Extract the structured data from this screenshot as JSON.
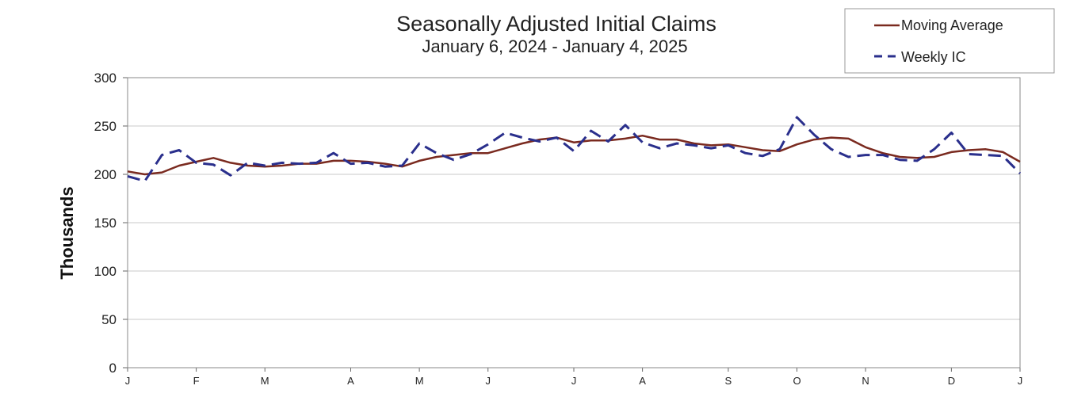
{
  "chart_data": {
    "type": "line",
    "title": "Seasonally Adjusted Initial Claims",
    "subtitle": "January 6, 2024 - January 4, 2025",
    "ylabel": "Thousands",
    "xlabel": "",
    "ylim": [
      0,
      300
    ],
    "yticks": [
      0,
      50,
      100,
      150,
      200,
      250,
      300
    ],
    "xlim": [
      "2024-01-06",
      "2025-01-04"
    ],
    "xticks": [
      {
        "label": "J",
        "date": "2024-01-06"
      },
      {
        "label": "F",
        "date": "2024-02-03"
      },
      {
        "label": "M",
        "date": "2024-03-02"
      },
      {
        "label": "A",
        "date": "2024-04-06"
      },
      {
        "label": "M",
        "date": "2024-05-04"
      },
      {
        "label": "J",
        "date": "2024-06-01"
      },
      {
        "label": "J",
        "date": "2024-07-06"
      },
      {
        "label": "A",
        "date": "2024-08-03"
      },
      {
        "label": "S",
        "date": "2024-09-07"
      },
      {
        "label": "O",
        "date": "2024-10-05"
      },
      {
        "label": "N",
        "date": "2024-11-02"
      },
      {
        "label": "D",
        "date": "2024-12-07"
      },
      {
        "label": "J",
        "date": "2025-01-04"
      }
    ],
    "grid": true,
    "legend": "top-right",
    "x": [
      "2024-01-06",
      "2024-01-13",
      "2024-01-20",
      "2024-01-27",
      "2024-02-03",
      "2024-02-10",
      "2024-02-17",
      "2024-02-24",
      "2024-03-02",
      "2024-03-09",
      "2024-03-16",
      "2024-03-23",
      "2024-03-30",
      "2024-04-06",
      "2024-04-13",
      "2024-04-20",
      "2024-04-27",
      "2024-05-04",
      "2024-05-11",
      "2024-05-18",
      "2024-05-25",
      "2024-06-01",
      "2024-06-08",
      "2024-06-15",
      "2024-06-22",
      "2024-06-29",
      "2024-07-06",
      "2024-07-13",
      "2024-07-20",
      "2024-07-27",
      "2024-08-03",
      "2024-08-10",
      "2024-08-17",
      "2024-08-24",
      "2024-08-31",
      "2024-09-07",
      "2024-09-14",
      "2024-09-21",
      "2024-09-28",
      "2024-10-05",
      "2024-10-12",
      "2024-10-19",
      "2024-10-26",
      "2024-11-02",
      "2024-11-09",
      "2024-11-16",
      "2024-11-23",
      "2024-11-30",
      "2024-12-07",
      "2024-12-14",
      "2024-12-21",
      "2024-12-28",
      "2025-01-04"
    ],
    "series": [
      {
        "name": "Moving Average",
        "color": "#7a2a1f",
        "style": "solid",
        "values": [
          203,
          200,
          202,
          209,
          213,
          217,
          212,
          209,
          208,
          209,
          211,
          211,
          214,
          214,
          213,
          211,
          208,
          214,
          218,
          220,
          222,
          222,
          227,
          232,
          236,
          238,
          233,
          235,
          235,
          237,
          240,
          236,
          236,
          232,
          230,
          231,
          228,
          225,
          224,
          231,
          236,
          238,
          237,
          228,
          222,
          218,
          217,
          218,
          223,
          225,
          226,
          223,
          213
        ]
      },
      {
        "name": "Weekly IC",
        "color": "#2a2f8c",
        "style": "dashed",
        "values": [
          198,
          193,
          220,
          225,
          212,
          210,
          199,
          212,
          209,
          212,
          211,
          212,
          222,
          211,
          212,
          208,
          209,
          232,
          222,
          215,
          221,
          231,
          243,
          238,
          234,
          238,
          224,
          245,
          234,
          251,
          233,
          227,
          232,
          230,
          227,
          230,
          222,
          219,
          226,
          259,
          241,
          226,
          218,
          220,
          220,
          215,
          214,
          226,
          243,
          221,
          220,
          219,
          201
        ]
      }
    ]
  }
}
